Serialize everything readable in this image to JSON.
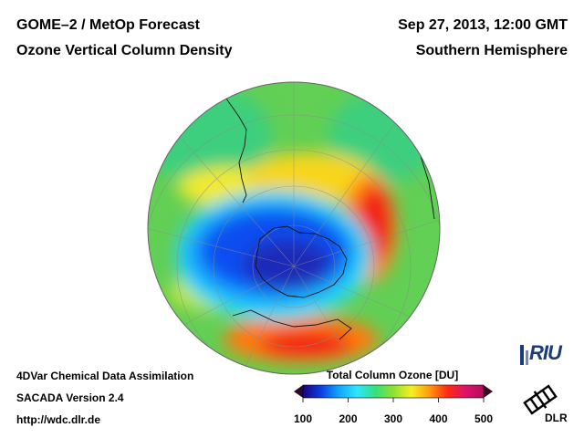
{
  "header": {
    "title": "GOME–2 / MetOp Forecast",
    "subtitle": "Ozone Vertical Column Density",
    "datetime": "Sep 27, 2013, 12:00 GMT",
    "region": "Southern Hemisphere"
  },
  "footer": {
    "line1": "4DVar Chemical Data Assimilation",
    "line2": "SACADA Version 2.4",
    "line3": "http://wdc.dlr.de"
  },
  "colorbar": {
    "title": "Total Column Ozone [DU]",
    "ticks": [
      "100",
      "200",
      "300",
      "400",
      "500"
    ],
    "min": 100,
    "max": 500,
    "stops": [
      "#1a0080",
      "#0b3fe0",
      "#10a8ff",
      "#2ee6ff",
      "#35e07a",
      "#8fe030",
      "#f5f020",
      "#ff9a10",
      "#ff2a10",
      "#e0106a",
      "#b01060"
    ]
  },
  "logos": {
    "riu": "RIU",
    "dlr": "DLR"
  },
  "map": {
    "projection": "orthographic",
    "center": "South Pole",
    "ozone_hole_DU": 150,
    "collar_max_DU": 450
  }
}
